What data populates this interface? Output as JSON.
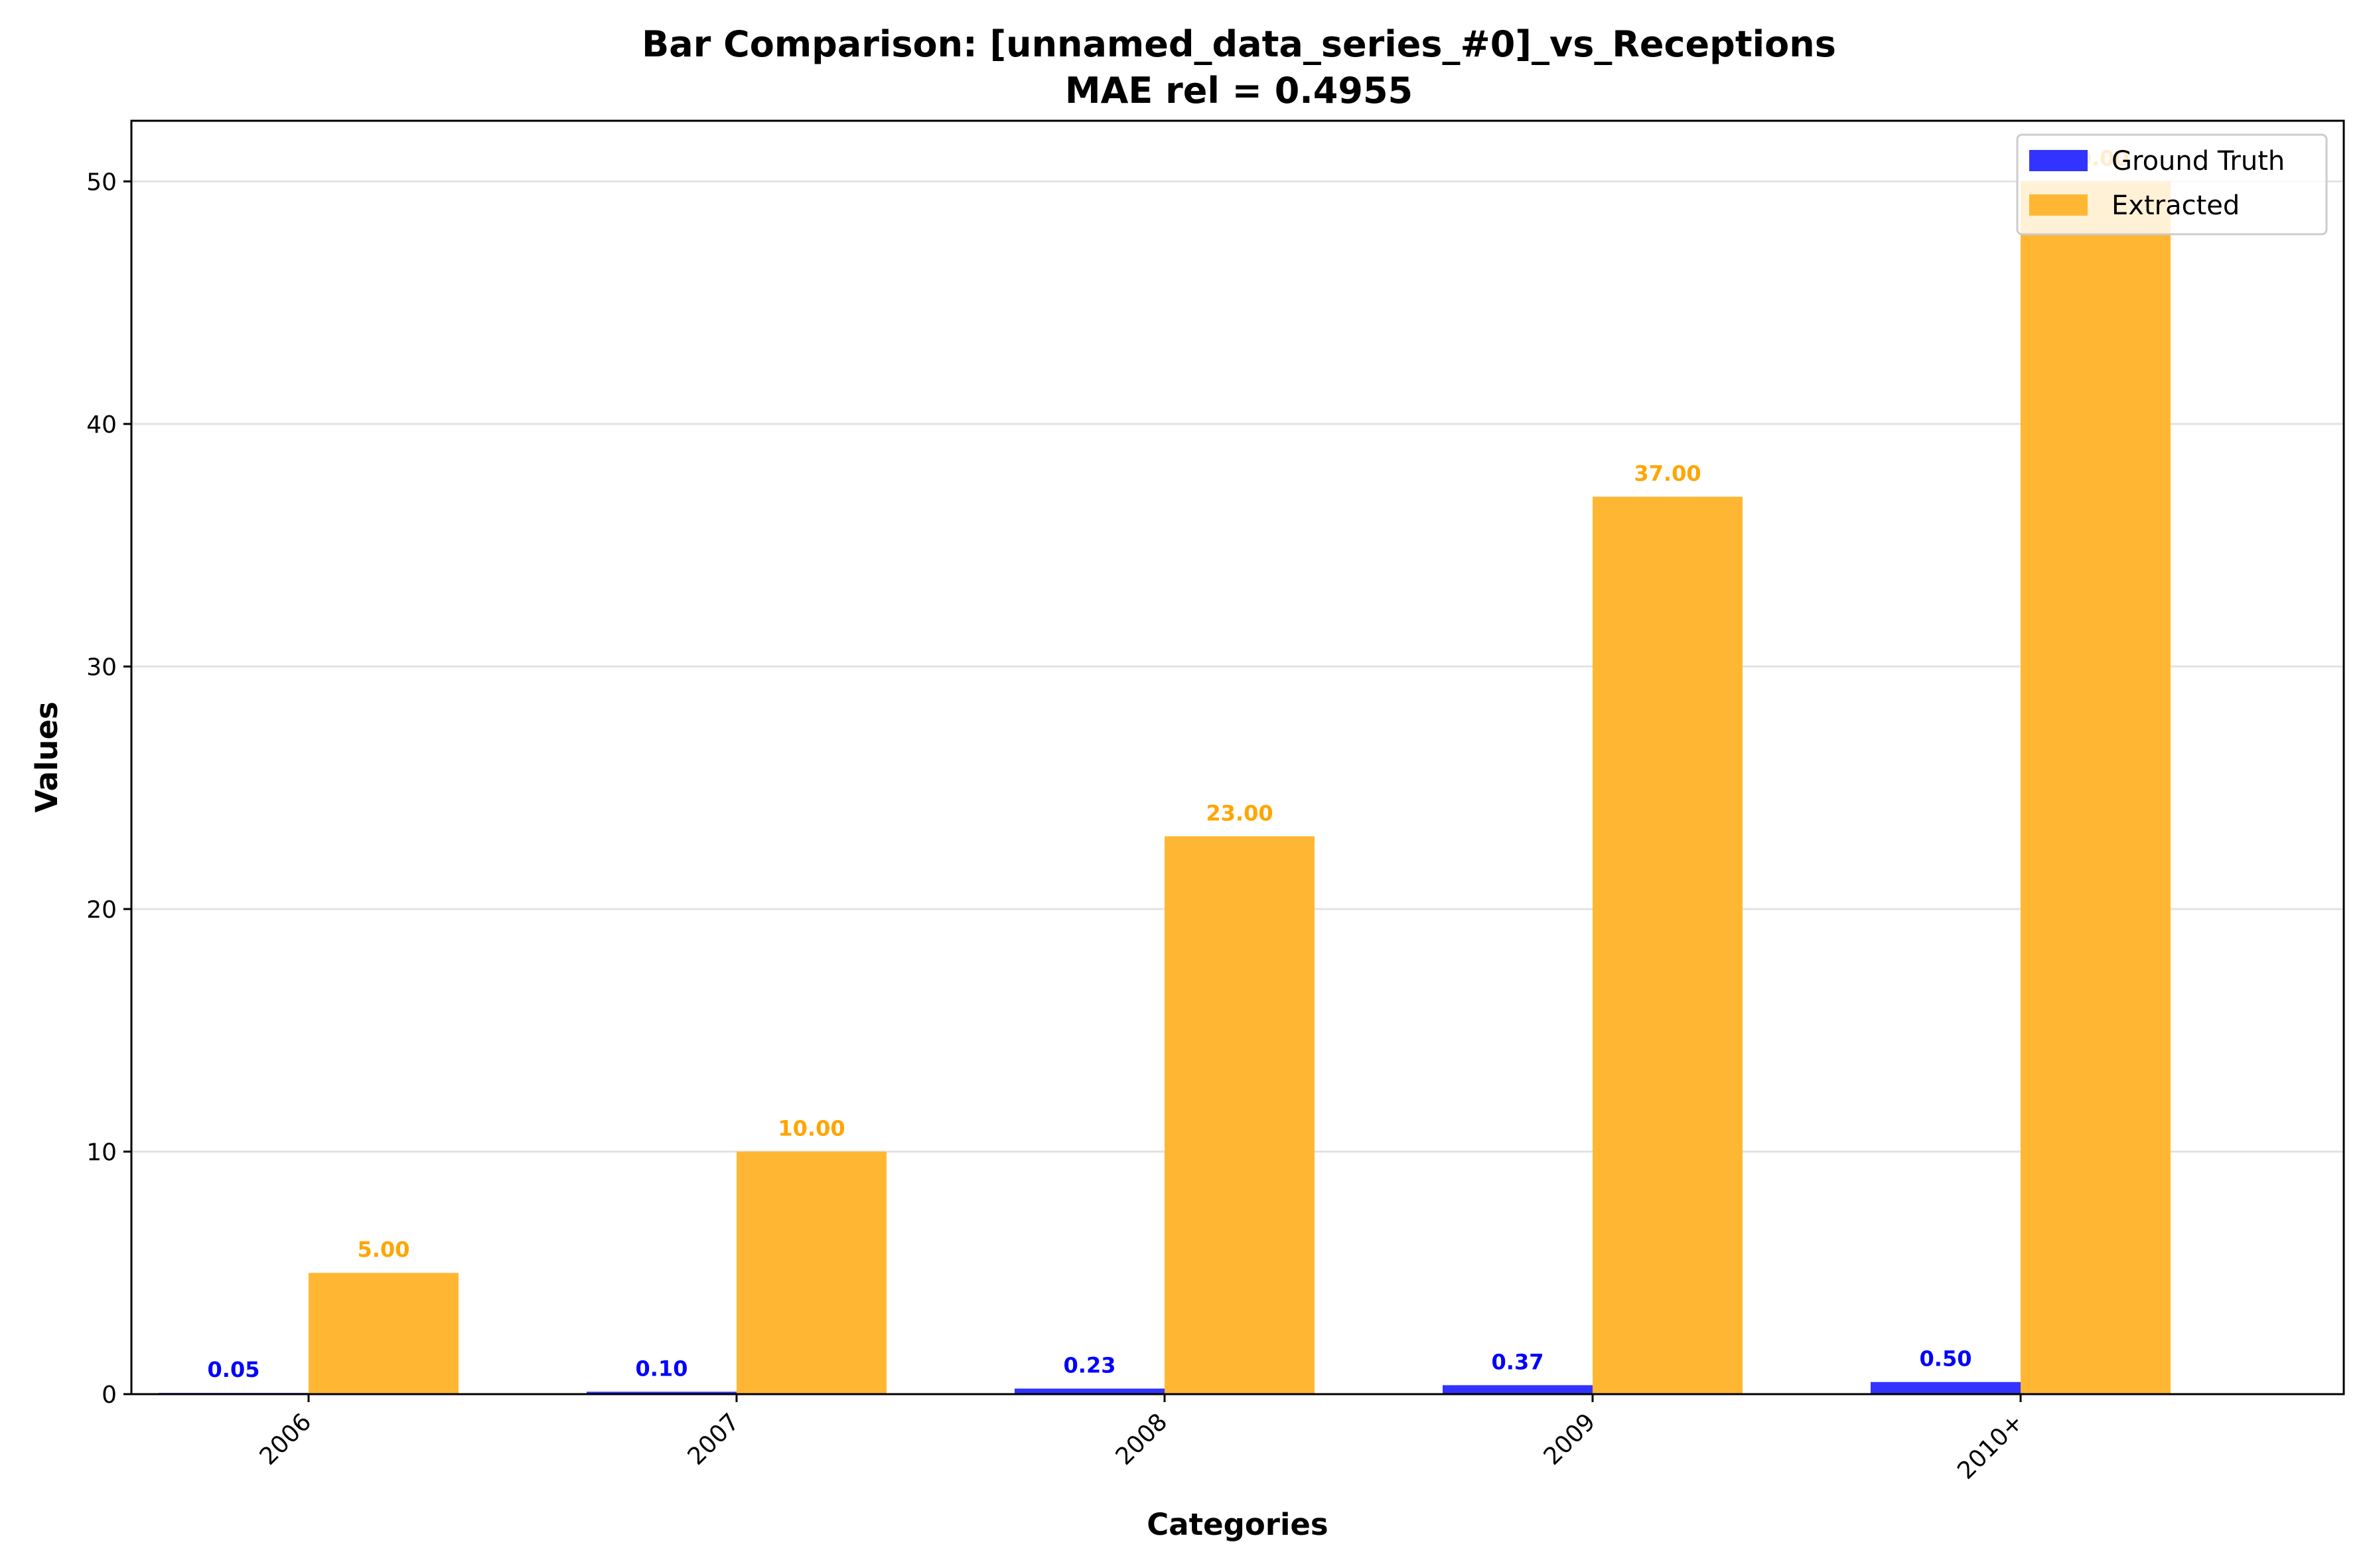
{
  "chart_data": {
    "type": "bar",
    "title": "Bar Comparison: [unnamed_data_series_#0]_vs_Receptions",
    "subtitle": "MAE rel = 0.4955",
    "xlabel": "Categories",
    "ylabel": "Values",
    "categories": [
      "2006",
      "2007",
      "2008",
      "2009",
      "2010+"
    ],
    "series": [
      {
        "name": "Ground Truth",
        "color": "#3333ff",
        "values": [
          0.05,
          0.1,
          0.23,
          0.37,
          0.5
        ],
        "labels": [
          "0.05",
          "0.10",
          "0.23",
          "0.37",
          "0.50"
        ]
      },
      {
        "name": "Extracted",
        "color": "#ffb733",
        "values": [
          5.0,
          10.0,
          23.0,
          37.0,
          50.0
        ],
        "labels": [
          "5.00",
          "10.00",
          "23.00",
          "37.00",
          "50.00"
        ]
      }
    ],
    "ylim": [
      0,
      52.5
    ],
    "yticks": [
      0,
      10,
      20,
      30,
      40,
      50
    ],
    "ytick_labels": [
      "0",
      "10",
      "20",
      "30",
      "40",
      "50"
    ],
    "grid": "y",
    "legend_position": "top-right",
    "label_colors": {
      "Ground Truth": "#0000ff",
      "Extracted": "#ffa500"
    }
  }
}
